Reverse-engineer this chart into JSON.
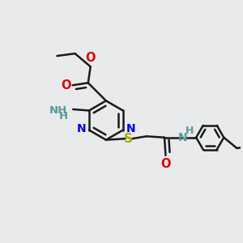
{
  "bg_color": "#e8eaec",
  "bond_color": "#1a1a1a",
  "bond_width": 1.8,
  "figsize": [
    3.0,
    3.0
  ],
  "dpi": 100,
  "colors": {
    "N": "#0000dd",
    "O": "#dd0000",
    "S": "#aaaa00",
    "NH2": "#5a9999",
    "NH": "#5a9999",
    "C": "#1a1a1a"
  }
}
